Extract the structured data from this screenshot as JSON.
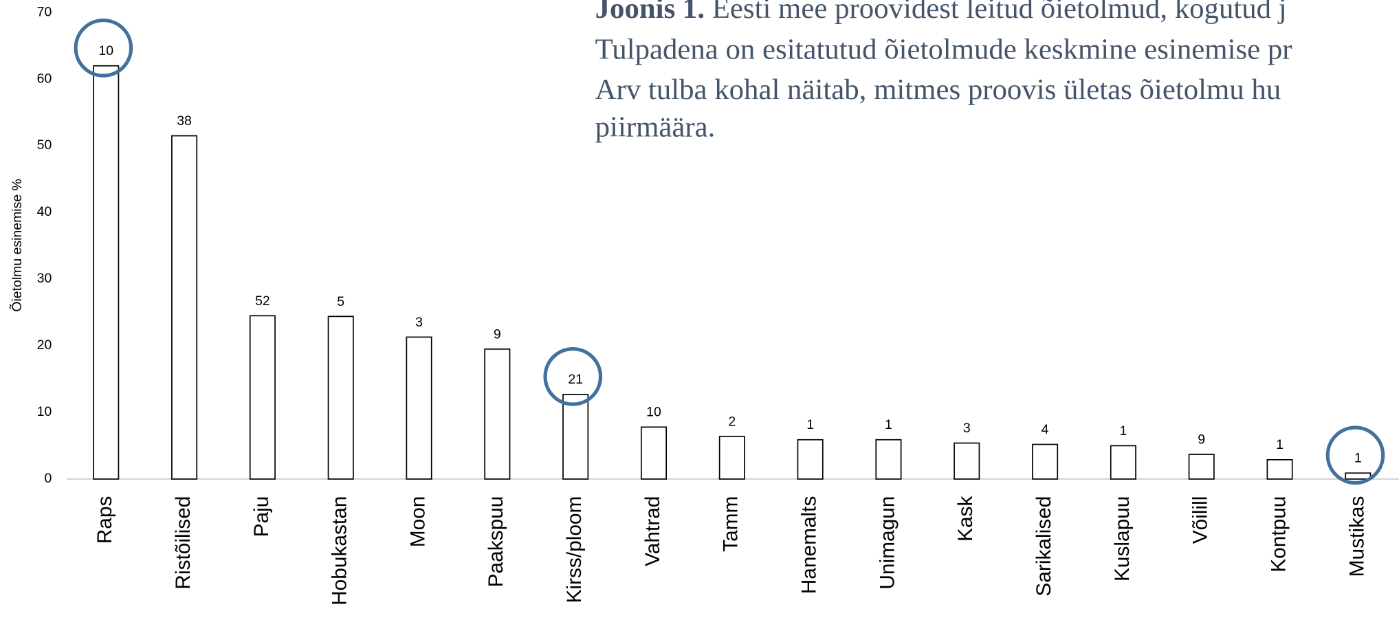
{
  "chart_data": {
    "type": "bar",
    "caption": {
      "bold": "Joonis 1.",
      "lines": [
        "Eesti mee proovidest leitud õietolmud, kogutud j",
        "Tulpadena on esitatutud õietolmude keskmine esinemise pr",
        "Arv tulba kohal näitab, mitmes proovis ületas õietolmu hu",
        "piirmäära."
      ]
    },
    "ylabel": "Õietolmu esinemise %",
    "categories": [
      "Raps",
      "Ristõilised",
      "Paju",
      "Hobukastan",
      "Moon",
      "Paakspuu",
      "Kirss/ploom",
      "Vahtrad",
      "Tamm",
      "Hanemalts",
      "Unimagun",
      "Kask",
      "Sarikalised",
      "Kuslapuu",
      "Võilill",
      "Kontpuu",
      "Mustikas"
    ],
    "values": [
      62,
      51.5,
      24.5,
      24.4,
      21.3,
      19.5,
      12.7,
      7.8,
      6.4,
      5.9,
      5.9,
      5.4,
      5.2,
      5.0,
      3.7,
      2.9,
      0.9
    ],
    "counts": [
      10,
      38,
      52,
      5,
      3,
      9,
      21,
      10,
      2,
      1,
      1,
      3,
      4,
      1,
      9,
      1,
      1
    ],
    "color": "#ffffff",
    "ylim": [
      0,
      70
    ],
    "yticks": [
      0,
      10,
      20,
      30,
      40,
      50,
      60,
      70
    ],
    "grid": false,
    "highlighted": [
      "Raps",
      "Kirss/ploom",
      "Mustikas"
    ],
    "highlight_color": "#41719c"
  }
}
